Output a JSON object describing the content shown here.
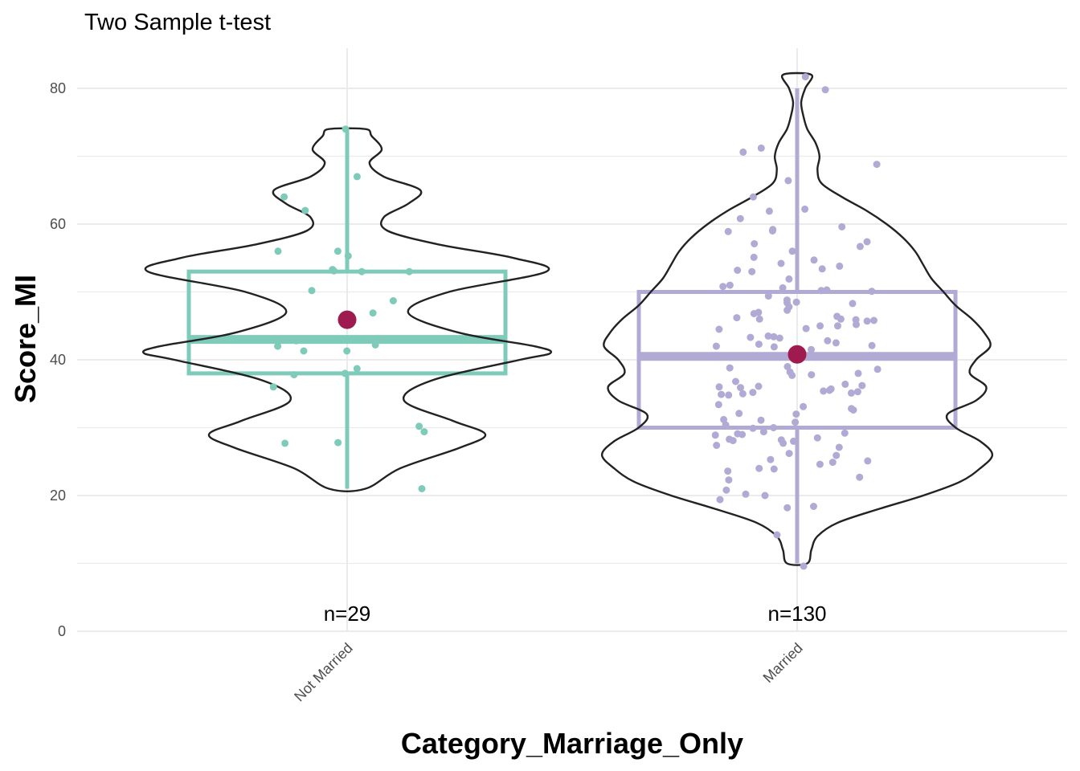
{
  "chart_data": {
    "type": "violin-box-jitter",
    "title": "Two Sample t-test",
    "xlabel": "Category_Marriage_Only",
    "ylabel": "Score_MI",
    "ylim": [
      0,
      85
    ],
    "y_ticks": [
      0,
      20,
      40,
      60,
      80
    ],
    "grid": true,
    "mean_color": "#9e1a4f",
    "groups": [
      {
        "category": "Not Married",
        "count_label": "n=29",
        "color": "#7fcbba",
        "box": {
          "q1": 38,
          "median": 43,
          "q3": 53,
          "whisker_low": 21,
          "whisker_high": 74
        },
        "mean": 45.9,
        "violin": {
          "y": [
            21,
            24,
            27,
            29,
            31,
            34,
            37,
            40,
            41,
            42,
            44,
            47,
            50,
            53,
            55,
            57,
            59,
            61,
            63,
            65,
            67,
            69,
            71,
            73,
            74
          ],
          "width": [
            0.09,
            0.26,
            0.55,
            0.68,
            0.52,
            0.28,
            0.42,
            0.85,
            1.0,
            0.92,
            0.55,
            0.3,
            0.5,
            0.98,
            0.82,
            0.45,
            0.2,
            0.18,
            0.3,
            0.36,
            0.18,
            0.11,
            0.17,
            0.12,
            0.09
          ]
        },
        "points": [
          74,
          67,
          64,
          62,
          56,
          55.3,
          56,
          53,
          53,
          53.3,
          50.2,
          48.7,
          46.9,
          42,
          41.3,
          41.3,
          42.2,
          43,
          38.7,
          38,
          37.8,
          36,
          30.2,
          29.4,
          27.7,
          27.8,
          21,
          42.8,
          53.1
        ]
      },
      {
        "category": "Married",
        "count_label": "n=130",
        "color": "#b1aad4",
        "box": {
          "q1": 30,
          "median": 40.5,
          "q3": 50,
          "whisker_low": 10,
          "whisker_high": 80
        },
        "mean": 40.8,
        "violin": {
          "y": [
            10,
            12,
            14,
            16,
            18,
            20,
            22,
            24,
            26,
            28,
            30,
            32,
            34,
            36,
            38,
            40,
            42,
            44,
            46,
            48,
            50,
            52,
            54,
            56,
            58,
            60,
            62,
            64,
            66,
            68,
            70,
            72,
            74,
            76,
            78,
            80,
            82
          ],
          "width": [
            0.05,
            0.07,
            0.1,
            0.2,
            0.4,
            0.62,
            0.8,
            0.9,
            0.96,
            0.9,
            0.78,
            0.74,
            0.88,
            0.93,
            0.85,
            0.88,
            0.95,
            0.92,
            0.86,
            0.78,
            0.72,
            0.66,
            0.62,
            0.58,
            0.52,
            0.44,
            0.34,
            0.22,
            0.12,
            0.1,
            0.11,
            0.09,
            0.05,
            0.03,
            0.02,
            0.04,
            0.07
          ],
          "note": ""
        },
        "points": [
          81.7,
          79.8,
          71.2,
          70.6,
          68.8,
          66.4,
          64,
          62.2,
          61.9,
          60.8,
          59.6,
          59.2,
          59,
          58.9,
          57.4,
          57.1,
          56.7,
          56,
          55.1,
          54.7,
          54.2,
          53.8,
          53.4,
          53.2,
          53,
          51.9,
          51,
          50.8,
          50.6,
          50.3,
          50.2,
          50.1,
          49.4,
          48.8,
          48.5,
          48.4,
          48.3,
          47.8,
          47.3,
          47,
          46.8,
          46.4,
          46.2,
          46,
          46,
          45.9,
          45.8,
          45.7,
          45.2,
          45,
          45,
          44.6,
          44.5,
          43.5,
          43.4,
          43.3,
          43.2,
          42.8,
          42.5,
          42.3,
          42.1,
          42,
          41.9,
          41.5,
          39,
          38.8,
          38.6,
          38.2,
          38,
          37.8,
          37.7,
          36.8,
          36.4,
          36.2,
          36.1,
          36,
          35.9,
          35.7,
          35.5,
          35.4,
          35.3,
          35.2,
          35.1,
          35,
          34.9,
          34.8,
          33.4,
          33.1,
          32.8,
          32.6,
          32.1,
          32,
          31.2,
          31.1,
          30.8,
          30.4,
          30,
          29.9,
          29.4,
          29.2,
          29.1,
          29,
          28.9,
          28.5,
          28.3,
          28.2,
          28.1,
          28,
          27.7,
          27.4,
          27.1,
          26.2,
          25.9,
          25.3,
          25.1,
          24.9,
          24.6,
          24,
          23.9,
          23.6,
          22.7,
          22.3,
          20.8,
          20.2,
          20,
          19.4,
          18.4,
          18.2,
          14.2,
          9.6
        ]
      }
    ]
  }
}
